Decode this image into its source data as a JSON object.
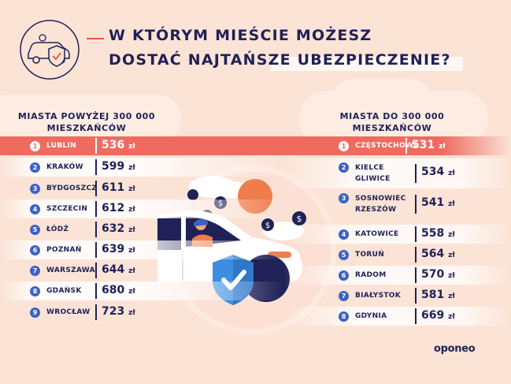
{
  "title": {
    "line1": "W KTÓRYM MIEŚCIE MOŻESZ",
    "line2": "DOSTAĆ NAJTAŃSZE UBEZPIECZENIE?"
  },
  "left_column": {
    "header_line1": "MIASTA POWYŻEJ 300 000",
    "header_line2": "MIESZKAŃCÓW",
    "rows": [
      {
        "rank": "1",
        "city": "LUBLIN",
        "price": "536",
        "unit": "zł"
      },
      {
        "rank": "2",
        "city": "KRAKÓW",
        "price": "599",
        "unit": "zł"
      },
      {
        "rank": "3",
        "city": "BYDGOSZCZ",
        "price": "611",
        "unit": "zł"
      },
      {
        "rank": "4",
        "city": "SZCZECIN",
        "price": "612",
        "unit": "zł"
      },
      {
        "rank": "5",
        "city": "ŁÓDŹ",
        "price": "632",
        "unit": "zł"
      },
      {
        "rank": "6",
        "city": "POZNAŃ",
        "price": "639",
        "unit": "zł"
      },
      {
        "rank": "7",
        "city": "WARSZAWA",
        "price": "644",
        "unit": "zł"
      },
      {
        "rank": "8",
        "city": "GDAŃSK",
        "price": "680",
        "unit": "zł"
      },
      {
        "rank": "9",
        "city": "WROCŁAW",
        "price": "723",
        "unit": "zł"
      }
    ]
  },
  "right_column": {
    "header_line1": "MIASTA DO 300 000",
    "header_line2": "MIESZKAŃCÓW",
    "rows": [
      {
        "rank": "1",
        "city": "CZĘSTOCHOWA",
        "city2": "",
        "price": "531",
        "unit": "zł"
      },
      {
        "rank": "2",
        "city": "KIELCE",
        "city2": "GLIWICE",
        "price": "534",
        "unit": "zł"
      },
      {
        "rank": "3",
        "city": "SOSNOWIEC",
        "city2": "RZESZÓW",
        "price": "541",
        "unit": "zł"
      },
      {
        "rank": "4",
        "city": "KATOWICE",
        "city2": "",
        "price": "558",
        "unit": "zł"
      },
      {
        "rank": "5",
        "city": "TORUŃ",
        "city2": "",
        "price": "564",
        "unit": "zł"
      },
      {
        "rank": "6",
        "city": "RADOM",
        "city2": "",
        "price": "570",
        "unit": "zł"
      },
      {
        "rank": "7",
        "city": "BIAŁYSTOK",
        "city2": "",
        "price": "581",
        "unit": "zł"
      },
      {
        "rank": "8",
        "city": "GDYNIA",
        "city2": "",
        "price": "669",
        "unit": "zł"
      }
    ]
  },
  "illustration": {
    "coin_symbol": "$",
    "icons": [
      "car-icon",
      "shield-check-icon",
      "dollar-coin-icon",
      "cloud-icon"
    ]
  },
  "brand": "oponeo",
  "colors": {
    "background": "#fbe3d6",
    "navy": "#1f2157",
    "accent_red": "#ef6b60",
    "badge_blue": "#3c62c3",
    "shield_blue": "#3d8ee0"
  }
}
